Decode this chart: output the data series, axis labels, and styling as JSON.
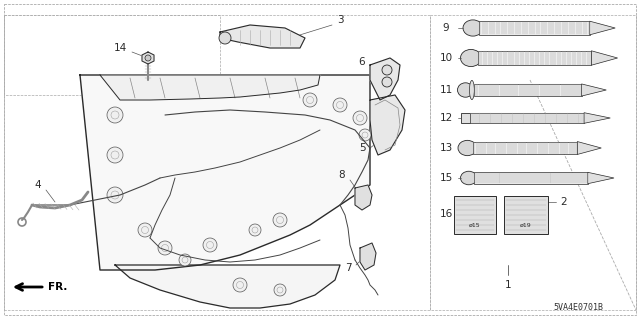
{
  "bg_color": "#ffffff",
  "line_color": "#2a2a2a",
  "diagram_code": "5VA4E0701B",
  "label_fontsize": 7.5,
  "small_fontsize": 5.5,
  "border_dash": [
    3,
    3
  ],
  "border_lw": 0.6,
  "parts": {
    "labels_left": [
      "3",
      "4",
      "5",
      "6",
      "7",
      "8",
      "14"
    ],
    "labels_right": [
      "9",
      "10",
      "11",
      "12",
      "13",
      "15",
      "16",
      "2",
      "1"
    ]
  }
}
